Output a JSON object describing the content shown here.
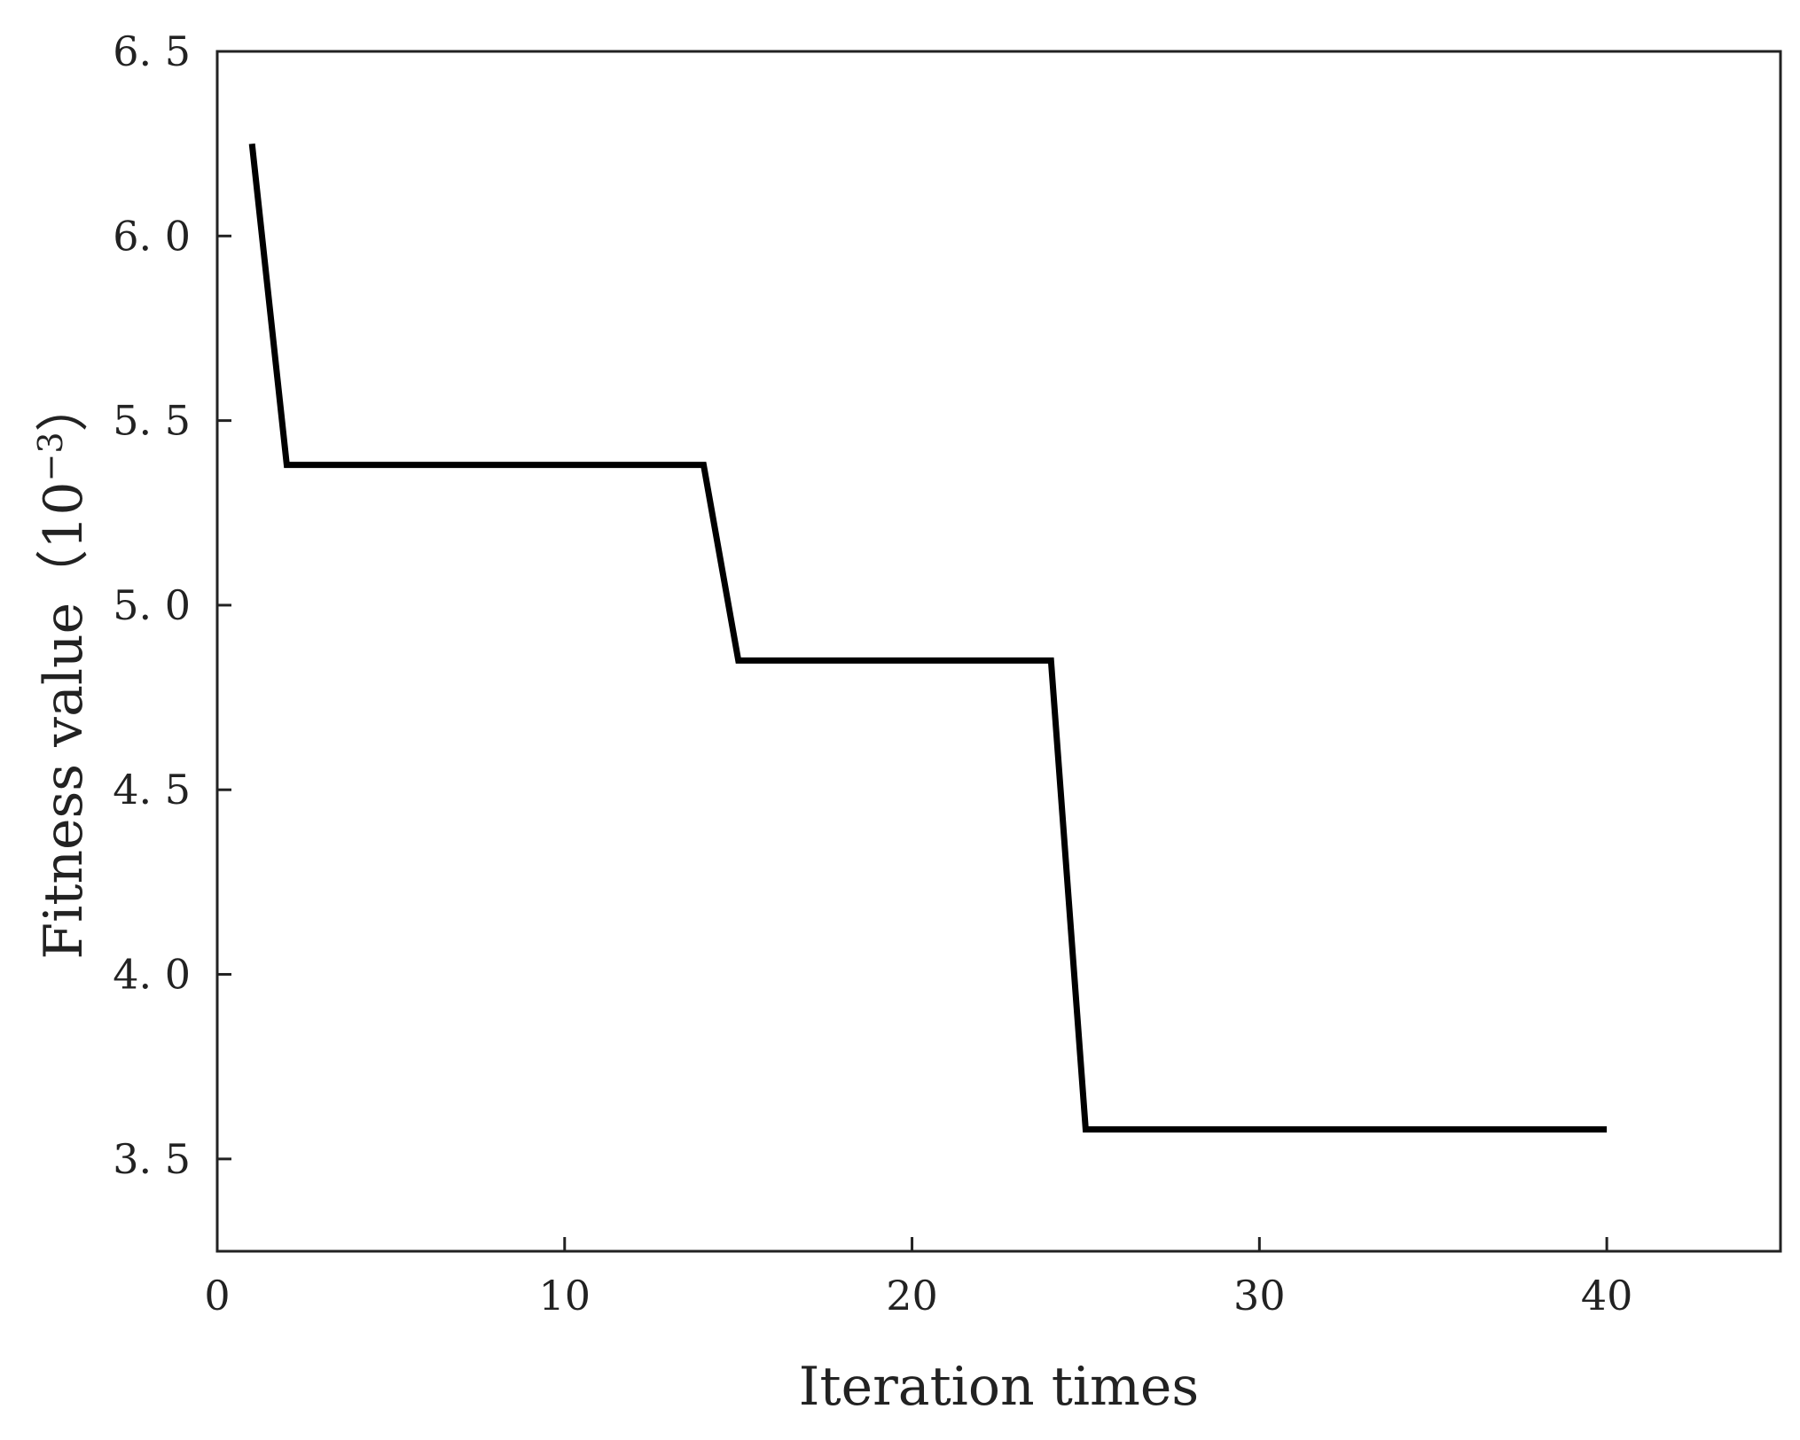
{
  "chart_data": {
    "type": "line",
    "title": "",
    "xlabel": "Iteration times",
    "ylabel": {
      "main": "Fitness value（",
      "base": "10",
      "exponent": "−3",
      "close": "）"
    },
    "xlim": [
      0,
      45
    ],
    "ylim": [
      3.25,
      6.5
    ],
    "xticks": [
      0,
      10,
      20,
      30,
      40
    ],
    "xtick_labels": [
      "0",
      "10",
      "20",
      "30",
      "40"
    ],
    "yticks": [
      3.5,
      4.0,
      4.5,
      5.0,
      5.5,
      6.0,
      6.5
    ],
    "ytick_labels": [
      "3. 5",
      "4. 0",
      "4. 5",
      "5. 0",
      "5. 5",
      "6. 0",
      "6. 5"
    ],
    "grid": false,
    "legend": "none",
    "series": [
      {
        "color": "#000000",
        "x": [
          1,
          2,
          14,
          15,
          24,
          25,
          40
        ],
        "y": [
          6.25,
          5.38,
          5.38,
          4.85,
          4.85,
          3.58,
          3.58
        ]
      }
    ]
  }
}
